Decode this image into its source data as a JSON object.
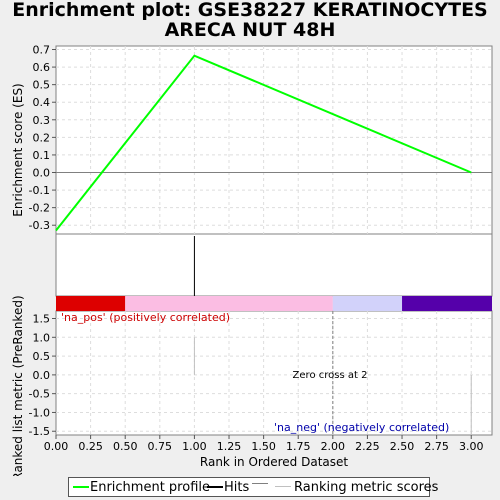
{
  "title_line1": "Enrichment plot: GSE38227 KERATINOCYTES",
  "title_line2": "ARECA NUT 48H",
  "chart_data": {
    "type": "line",
    "top_panel": {
      "ylabel": "Enrichment score (ES)",
      "ylim": [
        -0.35,
        0.72
      ],
      "yticks": [
        0.7,
        0.6,
        0.5,
        0.4,
        0.3,
        0.2,
        0.1,
        0.0,
        -0.1,
        -0.2,
        -0.3
      ],
      "ytick_labels": [
        "0.7",
        "0.6",
        "0.5",
        "0.4",
        "0.3",
        "0.2",
        "0.1",
        "0.0",
        "-0.1",
        "-0.2",
        "-0.3"
      ],
      "series": [
        {
          "name": "Enrichment profile",
          "color": "#00ff00",
          "x": [
            0,
            1,
            3
          ],
          "y": [
            -0.33,
            0.665,
            0.0
          ]
        }
      ],
      "grid": true
    },
    "hits": {
      "x": [
        1
      ],
      "color": "#000000"
    },
    "color_bar": {
      "segments": [
        {
          "from": 0.0,
          "to": 0.5,
          "color": "#dd0000"
        },
        {
          "from": 0.5,
          "to": 2.0,
          "color": "#fbbde3"
        },
        {
          "from": 2.0,
          "to": 2.5,
          "color": "#d2d2fa"
        },
        {
          "from": 2.5,
          "to": 3.15,
          "color": "#5500aa"
        }
      ]
    },
    "bottom_panel": {
      "ylabel": "Ranked list metric (PreRanked)",
      "ylim": [
        -1.6,
        1.7
      ],
      "yticks": [
        1.5,
        1.0,
        0.5,
        0.0,
        -0.5,
        -1.0,
        -1.5
      ],
      "ytick_labels": [
        "1.5",
        "1.0",
        "0.5",
        "0.0",
        "-0.5",
        "-1.0",
        "-1.5"
      ],
      "bars": [
        {
          "x": 1,
          "value": 1.0
        },
        {
          "x": 3,
          "value": -1.6
        }
      ],
      "zero_cross_x": 2,
      "annotation_pos": "'na_pos' (positively correlated)",
      "annotation_neg": "'na_neg' (negatively correlated)",
      "annotation_zero": "Zero cross at 2",
      "pos_color": "#cc0000",
      "neg_color": "#0000aa"
    },
    "xlabel": "Rank in Ordered Dataset",
    "xlim": [
      0,
      3.15
    ],
    "xticks": [
      0.0,
      0.25,
      0.5,
      0.75,
      1.0,
      1.25,
      1.5,
      1.75,
      2.0,
      2.25,
      2.5,
      2.75,
      3.0
    ],
    "xtick_labels": [
      "0.00",
      "0.25",
      "0.50",
      "0.75",
      "1.00",
      "1.25",
      "1.50",
      "1.75",
      "2.00",
      "2.25",
      "2.50",
      "2.75",
      "3.00"
    ]
  },
  "legend": {
    "items": [
      {
        "label": "Enrichment profile",
        "color": "#00ff00"
      },
      {
        "label": "Hits",
        "color": "#000000"
      },
      {
        "label": "",
        "color": "#808080"
      },
      {
        "label": "Ranking metric scores",
        "color": "#c0c0c0"
      }
    ]
  }
}
